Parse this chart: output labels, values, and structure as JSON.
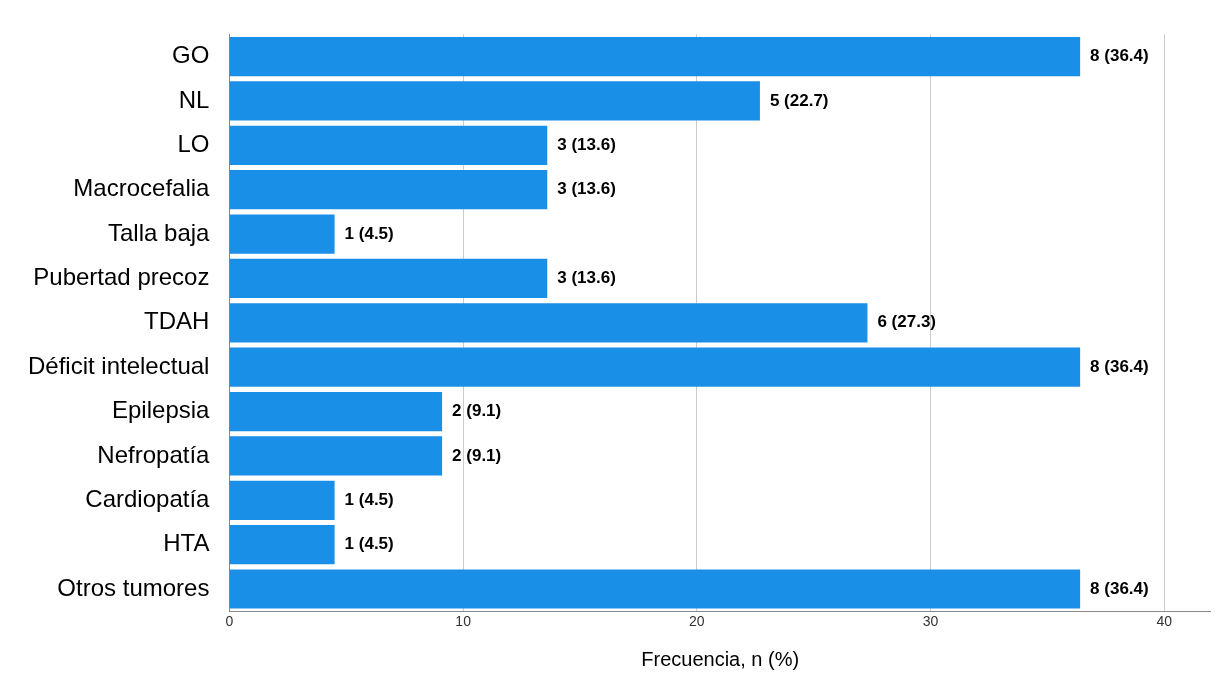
{
  "chart_data": {
    "type": "bar",
    "orientation": "horizontal",
    "xlabel": "Frecuencia, n (%)",
    "categories": [
      "GO",
      "NL",
      "LO",
      "Macrocefalia",
      "Talla baja",
      "Pubertad precoz",
      "TDAH",
      "Déficit intelectual",
      "Epilepsia",
      "Nefropatía",
      "Cardiopatía",
      "HTA",
      "Otros tumores"
    ],
    "values": [
      36.4,
      22.7,
      13.6,
      13.6,
      4.5,
      13.6,
      27.3,
      36.4,
      9.1,
      9.1,
      4.5,
      4.5,
      36.4
    ],
    "value_labels": [
      "8 (36.4)",
      "5 (22.7)",
      "3 (13.6)",
      "3 (13.6)",
      "1 (4.5)",
      "3 (13.6)",
      "6 (27.3)",
      "8 (36.4)",
      "2 (9.1)",
      "2 (9.1)",
      "1 (4.5)",
      "1 (4.5)",
      "8 (36.4)"
    ],
    "color": "#1a8fe8",
    "xlim": [
      0,
      42
    ],
    "xticks": [
      0,
      10,
      20,
      30,
      40
    ],
    "grid": "x"
  }
}
